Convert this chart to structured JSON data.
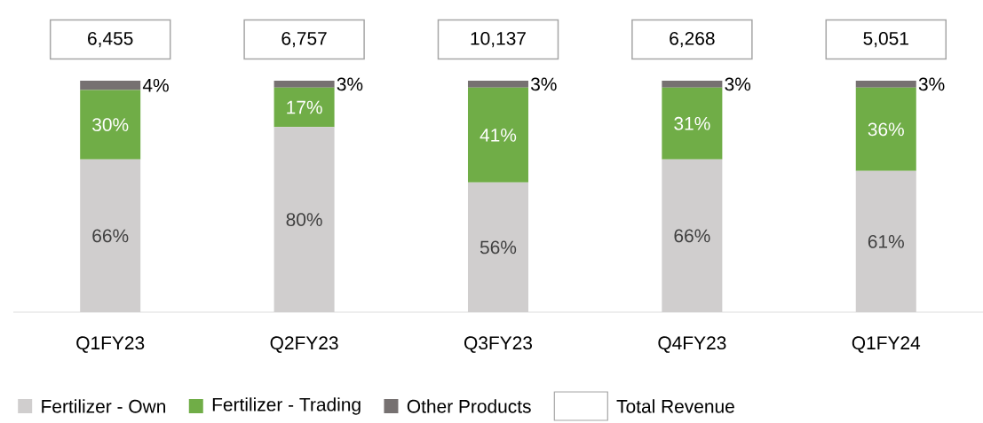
{
  "chart_data": {
    "type": "bar",
    "stacked": true,
    "categories": [
      "Q1FY23",
      "Q2FY23",
      "Q3FY23",
      "Q4FY23",
      "Q1FY24"
    ],
    "series": [
      {
        "name": "Fertilizer - Own",
        "color": "#d0cece",
        "values": [
          66,
          80,
          56,
          66,
          61
        ],
        "value_labels": [
          "66%",
          "80%",
          "56%",
          "66%",
          "61%"
        ]
      },
      {
        "name": "Fertilizer - Trading",
        "color": "#70ad47",
        "values": [
          30,
          17,
          41,
          31,
          36
        ],
        "value_labels": [
          "30%",
          "17%",
          "41%",
          "31%",
          "36%"
        ]
      },
      {
        "name": "Other Products",
        "color": "#767171",
        "values": [
          4,
          3,
          3,
          3,
          3
        ],
        "value_labels": [
          "4%",
          "3%",
          "3%",
          "3%",
          "3%"
        ]
      }
    ],
    "annotations": [
      "6,455",
      "6,757",
      "10,137",
      "6,268",
      "5,051",
      "Total Revenue"
    ],
    "legend": "bottom"
  }
}
